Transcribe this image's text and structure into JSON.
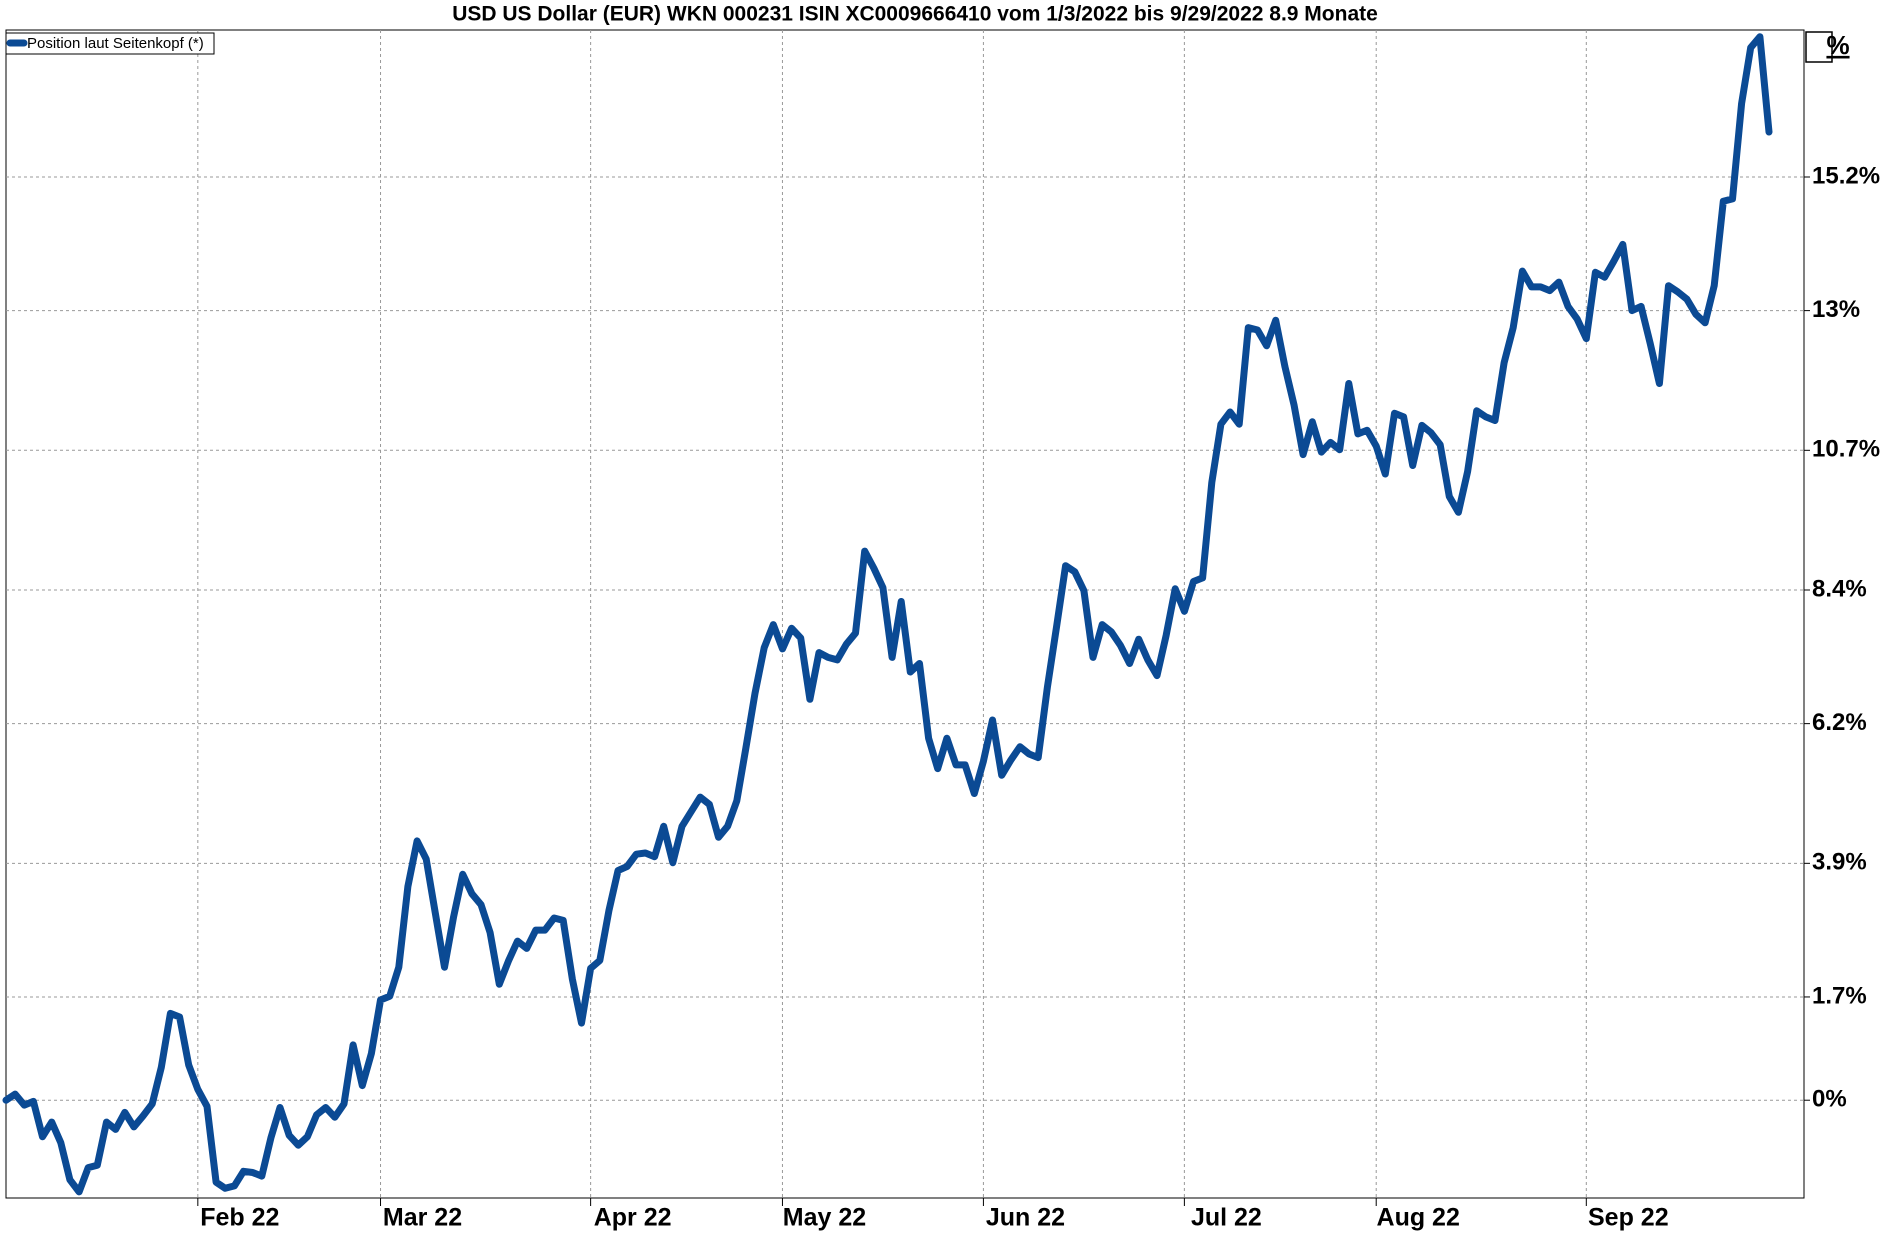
{
  "chart_data": {
    "type": "line",
    "title": "USD US Dollar (EUR) WKN 000231 ISIN XC0009666410 vom 1/3/2022 bis 9/29/2022 8.9 Monate",
    "y_unit": "%",
    "categories": [
      null,
      null,
      null,
      null,
      null,
      null,
      null,
      null,
      null,
      null,
      null,
      null,
      null,
      null,
      null,
      null,
      null,
      null,
      null,
      null,
      null,
      "Feb 22",
      null,
      null,
      null,
      null,
      null,
      null,
      null,
      null,
      null,
      null,
      null,
      null,
      null,
      null,
      null,
      null,
      null,
      null,
      null,
      "Mar 22",
      null,
      null,
      null,
      null,
      null,
      null,
      null,
      null,
      null,
      null,
      null,
      null,
      null,
      null,
      null,
      null,
      null,
      null,
      null,
      null,
      null,
      null,
      "Apr 22",
      null,
      null,
      null,
      null,
      null,
      null,
      null,
      null,
      null,
      null,
      null,
      null,
      null,
      null,
      null,
      null,
      null,
      null,
      null,
      null,
      "May 22",
      null,
      null,
      null,
      null,
      null,
      null,
      null,
      null,
      null,
      null,
      null,
      null,
      null,
      null,
      null,
      null,
      null,
      null,
      null,
      null,
      null,
      "Jun 22",
      null,
      null,
      null,
      null,
      null,
      null,
      null,
      null,
      null,
      null,
      null,
      null,
      null,
      null,
      null,
      null,
      null,
      null,
      null,
      null,
      null,
      "Jul 22",
      null,
      null,
      null,
      null,
      null,
      null,
      null,
      null,
      null,
      null,
      null,
      null,
      null,
      null,
      null,
      null,
      null,
      null,
      null,
      null,
      "Aug 22",
      null,
      null,
      null,
      null,
      null,
      null,
      null,
      null,
      null,
      null,
      null,
      null,
      null,
      null,
      null,
      null,
      null,
      null,
      null,
      null,
      null,
      null,
      "Sep 22",
      null,
      null,
      null,
      null,
      null,
      null,
      null,
      null,
      null,
      null,
      null,
      null,
      null,
      null,
      null,
      null,
      null,
      null,
      null,
      null
    ],
    "series": [
      {
        "name": "Position laut Seitenkopf (*)",
        "color": "#0b4a94",
        "values": [
          0,
          0.1,
          -0.08,
          -0.02,
          -0.6,
          -0.36,
          -0.7,
          -1.31,
          -1.51,
          -1.11,
          -1.07,
          -0.36,
          -0.48,
          -0.2,
          -0.44,
          -0.26,
          -0.06,
          0.54,
          1.43,
          1.37,
          0.58,
          0.18,
          -0.1,
          -1.35,
          -1.45,
          -1.41,
          -1.17,
          -1.19,
          -1.25,
          -0.62,
          -0.12,
          -0.58,
          -0.74,
          -0.6,
          -0.24,
          -0.12,
          -0.28,
          -0.06,
          0.91,
          0.24,
          0.77,
          1.65,
          1.71,
          2.19,
          3.52,
          4.27,
          3.97,
          3.08,
          2.19,
          3.02,
          3.72,
          3.4,
          3.22,
          2.76,
          1.91,
          2.29,
          2.62,
          2.5,
          2.8,
          2.8,
          3.0,
          2.96,
          1.99,
          1.27,
          2.17,
          2.3,
          3.12,
          3.78,
          3.85,
          4.05,
          4.07,
          4.01,
          4.51,
          3.91,
          4.51,
          4.75,
          4.99,
          4.87,
          4.33,
          4.51,
          4.93,
          5.8,
          6.7,
          7.45,
          7.83,
          7.43,
          7.77,
          7.61,
          6.6,
          7.37,
          7.29,
          7.25,
          7.51,
          7.69,
          9.04,
          8.76,
          8.44,
          7.29,
          8.21,
          7.05,
          7.19,
          5.96,
          5.46,
          5.96,
          5.52,
          5.52,
          5.05,
          5.58,
          6.26,
          5.35,
          5.6,
          5.82,
          5.7,
          5.64,
          6.8,
          7.79,
          8.8,
          8.7,
          8.39,
          7.29,
          7.83,
          7.71,
          7.49,
          7.19,
          7.59,
          7.25,
          6.99,
          7.65,
          8.42,
          8.05,
          8.54,
          8.6,
          10.17,
          11.13,
          11.33,
          11.13,
          12.72,
          12.68,
          12.42,
          12.84,
          12.08,
          11.45,
          10.63,
          11.17,
          10.67,
          10.83,
          10.71,
          11.8,
          10.97,
          11.03,
          10.77,
          10.31,
          11.31,
          11.25,
          10.45,
          11.11,
          10.99,
          10.79,
          9.94,
          9.68,
          10.35,
          11.35,
          11.25,
          11.19,
          12.14,
          12.72,
          13.65,
          13.39,
          13.39,
          13.33,
          13.47,
          13.07,
          12.86,
          12.54,
          13.63,
          13.55,
          13.81,
          14.09,
          13.0,
          13.07,
          12.46,
          11.8,
          13.41,
          13.31,
          13.19,
          12.94,
          12.8,
          13.41,
          14.8,
          14.84,
          16.41,
          17.33,
          17.51,
          15.94
        ]
      }
    ],
    "ylim": [
      -1.61,
      17.62
    ],
    "yticks": [
      {
        "value": 0,
        "label": "0%"
      },
      {
        "value": 1.7,
        "label": "1.7%"
      },
      {
        "value": 3.9,
        "label": "3.9%"
      },
      {
        "value": 6.2,
        "label": "6.2%"
      },
      {
        "value": 8.4,
        "label": "8.4%"
      },
      {
        "value": 10.7,
        "label": "10.7%"
      },
      {
        "value": 13,
        "label": "13%"
      },
      {
        "value": 15.2,
        "label": "15.2%"
      }
    ],
    "grid": true,
    "legend": "upper left"
  }
}
